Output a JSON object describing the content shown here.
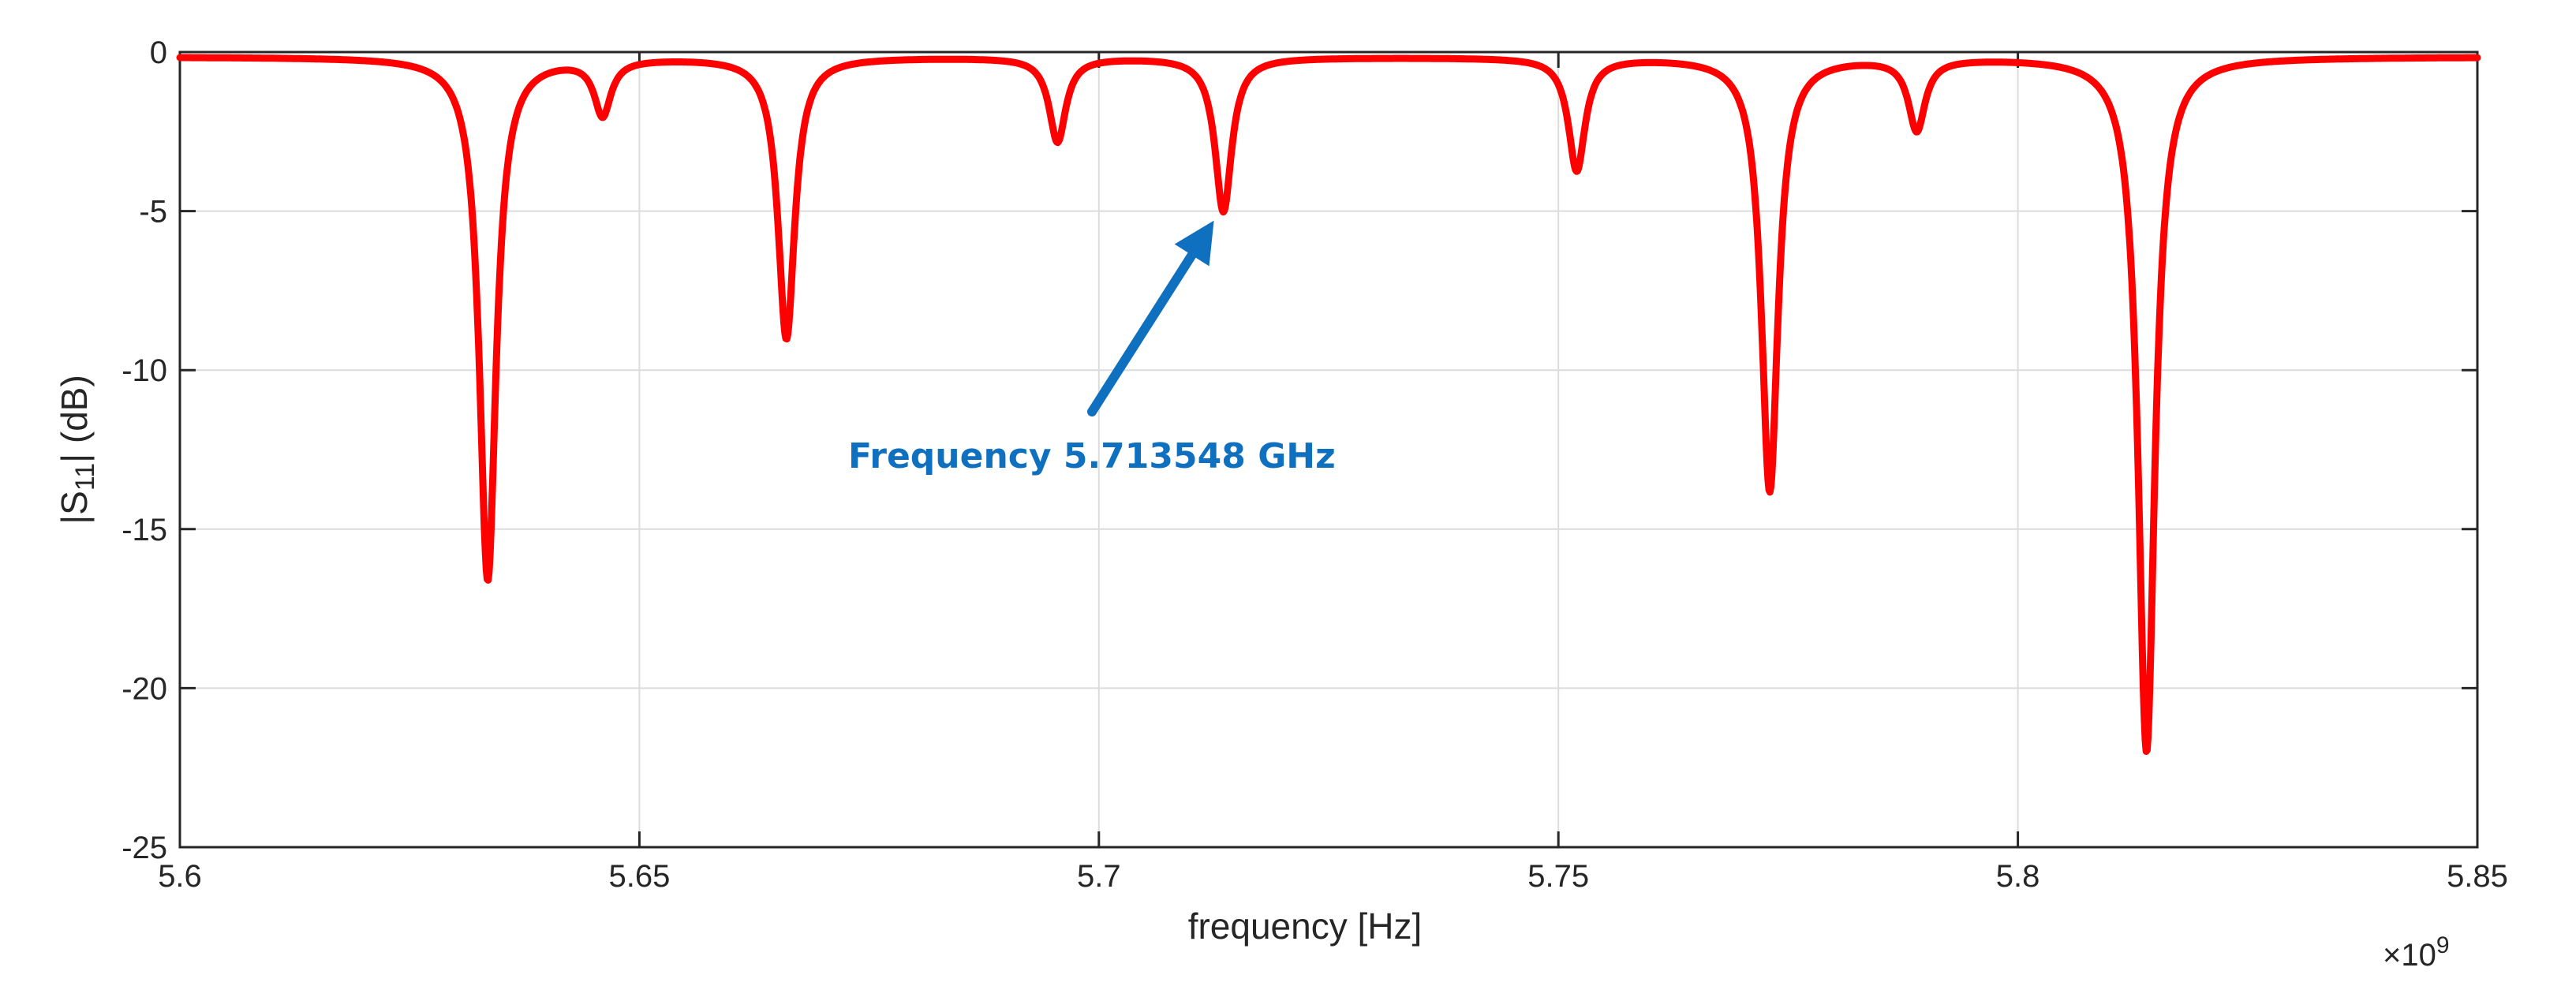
{
  "chart_data": {
    "type": "line",
    "title": "",
    "xlabel": "frequency [Hz]",
    "ylabel_main": "|S",
    "ylabel_sub": "11",
    "ylabel_tail": "| (dB)",
    "x_multiplier_prefix": "×10",
    "x_multiplier_exponent": "9",
    "xlim": [
      5.6,
      5.85
    ],
    "ylim": [
      -25,
      0
    ],
    "x_unit_scale": 1000000000.0,
    "xticks": [
      5.6,
      5.65,
      5.7,
      5.75,
      5.8,
      5.85
    ],
    "xtick_labels": [
      "5.6",
      "5.65",
      "5.7",
      "5.75",
      "5.8",
      "5.85"
    ],
    "yticks": [
      0,
      -5,
      -10,
      -15,
      -20,
      -25
    ],
    "ytick_labels": [
      "0",
      "-5",
      "-10",
      "-15",
      "-20",
      "-25"
    ],
    "grid": true,
    "series_color": "#FF0000",
    "baseline_db": -0.15,
    "resonances": [
      {
        "f": 5.6335,
        "depth": -16.6
      },
      {
        "f": 5.646,
        "depth": -1.9
      },
      {
        "f": 5.666,
        "depth": -9.0
      },
      {
        "f": 5.6955,
        "depth": -2.8
      },
      {
        "f": 5.713548,
        "depth": -5.0
      },
      {
        "f": 5.752,
        "depth": -3.7
      },
      {
        "f": 5.773,
        "depth": -13.8
      },
      {
        "f": 5.789,
        "depth": -2.4
      },
      {
        "f": 5.814,
        "depth": -22.0
      }
    ],
    "annotation": {
      "text": "Frequency 5.713548 GHz",
      "target_f": 5.713548,
      "target_db": -5.0,
      "color": "#1070C0"
    }
  }
}
